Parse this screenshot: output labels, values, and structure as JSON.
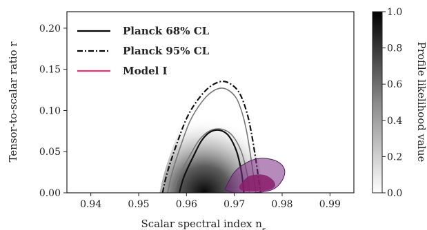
{
  "chart_data": {
    "type": "contour",
    "xlabel": "Scalar spectral index n",
    "xlabel_sub": "s",
    "ylabel": "Tensor-to-scalar ratio r",
    "xlim": [
      0.935,
      0.995
    ],
    "ylim": [
      0.0,
      0.22
    ],
    "xticks": [
      0.94,
      0.95,
      0.96,
      0.97,
      0.98,
      0.99
    ],
    "xtick_labels": [
      "0.94",
      "0.95",
      "0.96",
      "0.97",
      "0.98",
      "0.99"
    ],
    "yticks": [
      0.0,
      0.05,
      0.1,
      0.15,
      0.2
    ],
    "ytick_labels": [
      "0.00",
      "0.05",
      "0.10",
      "0.15",
      "0.20"
    ],
    "colorbar": {
      "label": "Profile likelihood value",
      "range": [
        0.0,
        1.0
      ],
      "ticks": [
        0.0,
        0.2,
        0.4,
        0.6,
        0.8,
        1.0
      ],
      "tick_labels": [
        "0.0",
        "0.2",
        "0.4",
        "0.6",
        "0.8",
        "1.0"
      ],
      "colormap": "grey-to-black"
    },
    "legend": {
      "placement": "top-left",
      "entries": [
        {
          "label": "Planck 68% CL",
          "style": "solid",
          "color": "#000000"
        },
        {
          "label": "Planck 95% CL",
          "style": "dashdot",
          "color": "#000000"
        },
        {
          "label": "Model I",
          "style": "solid",
          "color": "#e8336b"
        }
      ]
    },
    "series": [
      {
        "label_ref": "Planck 68% CL",
        "kind": "contour",
        "color": "#111111",
        "x": [
          0.9585,
          0.9595,
          0.9615,
          0.963,
          0.9645,
          0.966,
          0.9675,
          0.969,
          0.9705,
          0.9715,
          0.972
        ],
        "y": [
          0.0,
          0.02,
          0.045,
          0.062,
          0.072,
          0.076,
          0.075,
          0.068,
          0.05,
          0.025,
          0.0
        ]
      },
      {
        "label_ref": "Planck 95% CL",
        "kind": "contour",
        "color": "#111111",
        "x": [
          0.955,
          0.956,
          0.958,
          0.96,
          0.962,
          0.9645,
          0.967,
          0.969,
          0.971,
          0.9725,
          0.9735,
          0.9745,
          0.9755
        ],
        "y": [
          0.0,
          0.025,
          0.06,
          0.09,
          0.11,
          0.127,
          0.135,
          0.133,
          0.122,
          0.1,
          0.075,
          0.04,
          0.0
        ]
      },
      {
        "label_ref": "Model I",
        "kind": "filled-region",
        "color": "#7a2a82",
        "x": [
          0.968,
          0.97,
          0.973,
          0.976,
          0.979,
          0.9805,
          0.98,
          0.978,
          0.974,
          0.97,
          0.968
        ],
        "y": [
          0.004,
          0.025,
          0.038,
          0.042,
          0.038,
          0.028,
          0.015,
          0.004,
          0.0,
          0.0,
          0.004
        ]
      },
      {
        "label_ref": "Model I",
        "kind": "filled-region-core",
        "color": "#8a1c6a",
        "x": [
          0.971,
          0.973,
          0.976,
          0.978,
          0.9785,
          0.977,
          0.974,
          0.9715,
          0.971
        ],
        "y": [
          0.008,
          0.02,
          0.022,
          0.016,
          0.008,
          0.003,
          0.002,
          0.003,
          0.008
        ]
      }
    ],
    "likelihood_peak": {
      "x": 0.9655,
      "y": 0.0
    }
  }
}
